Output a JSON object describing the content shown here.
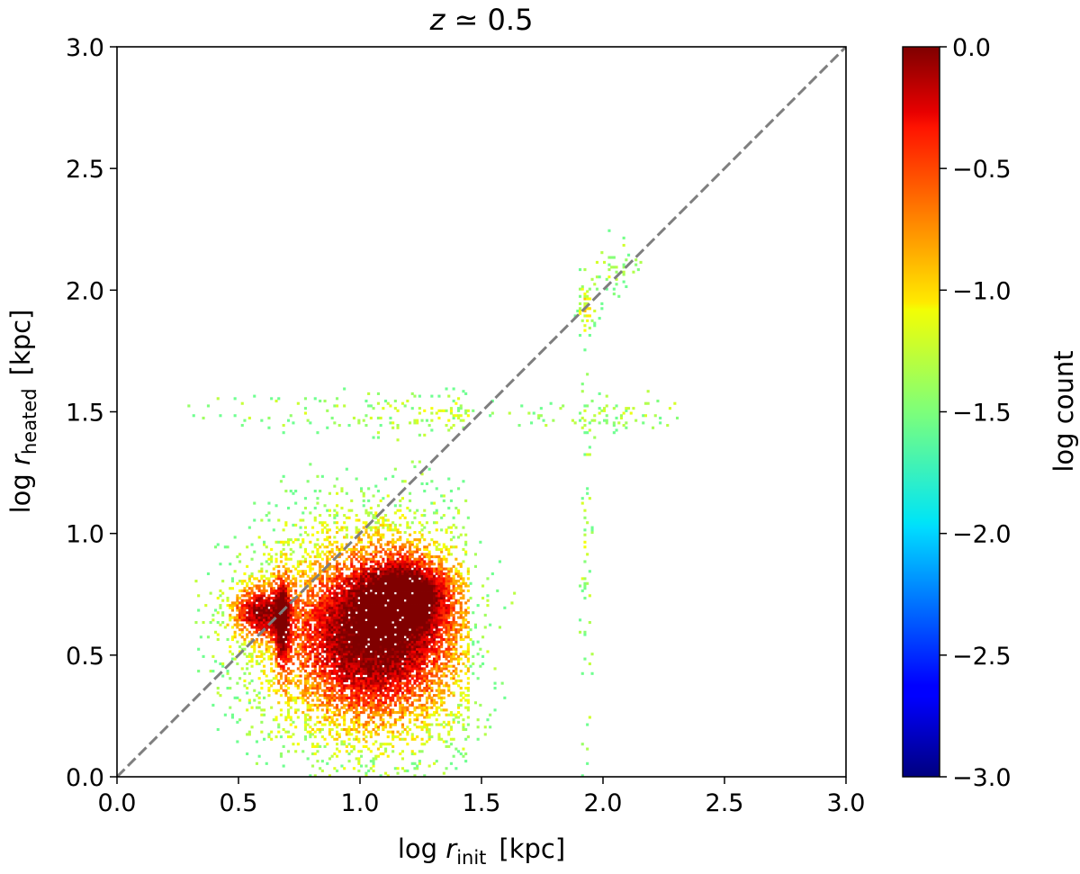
{
  "chart_data": {
    "type": "heatmap",
    "title_var": "z",
    "title_rel": "≃ 0.5",
    "xlabel": {
      "prefix": "log ",
      "var": "r",
      "sub": "init",
      "unit": "[kpc]"
    },
    "ylabel": {
      "prefix": "log ",
      "var": "r",
      "sub": "heated",
      "unit": "[kpc]"
    },
    "xlim": [
      0.0,
      3.0
    ],
    "ylim": [
      0.0,
      3.0
    ],
    "xticks": [
      "0.0",
      "0.5",
      "1.0",
      "1.5",
      "2.0",
      "2.5",
      "3.0"
    ],
    "yticks": [
      "0.0",
      "0.5",
      "1.0",
      "1.5",
      "2.0",
      "2.5",
      "3.0"
    ],
    "reference_line": {
      "style": "dashed",
      "color": "#7f7f7f",
      "x": [
        0.0,
        3.0
      ],
      "y": [
        0.0,
        3.0
      ]
    },
    "colorbar": {
      "label": "log count",
      "range": [
        -3.0,
        0.0
      ],
      "colormap": "jet",
      "ticks": [
        "0.0",
        "−0.5",
        "−1.0",
        "−1.5",
        "−2.0",
        "−2.5",
        "−3.0"
      ],
      "tick_values": [
        0.0,
        -0.5,
        -1.0,
        -1.5,
        -2.0,
        -2.5,
        -3.0
      ]
    },
    "bin_size": 0.01,
    "seed": 7,
    "density_components": [
      {
        "name": "main-cloud",
        "x": 1.05,
        "y": 0.58,
        "sx": 0.26,
        "sy": 0.26,
        "weight": 1.0
      },
      {
        "name": "upper-core",
        "x": 1.2,
        "y": 0.75,
        "sx": 0.12,
        "sy": 0.1,
        "weight": 0.6
      },
      {
        "name": "inner-clump",
        "x": 0.58,
        "y": 0.68,
        "sx": 0.08,
        "sy": 0.08,
        "weight": 0.7
      },
      {
        "name": "streak-068",
        "x": 0.68,
        "y": 0.62,
        "sx": 0.02,
        "sy": 0.15,
        "weight": 0.6
      },
      {
        "name": "diagonal-band",
        "x": 1.5,
        "y": 1.5,
        "sx": 0.6,
        "sy": 0.05,
        "weight": 0.15
      },
      {
        "name": "stripe-193",
        "x": 1.93,
        "y": 0.75,
        "sx": 0.015,
        "sy": 0.45,
        "weight": 0.12
      },
      {
        "name": "cluster-193",
        "x": 1.93,
        "y": 1.93,
        "sx": 0.03,
        "sy": 0.08,
        "weight": 0.25
      },
      {
        "name": "cluster-205",
        "x": 2.05,
        "y": 2.1,
        "sx": 0.05,
        "sy": 0.07,
        "weight": 0.15
      }
    ]
  }
}
